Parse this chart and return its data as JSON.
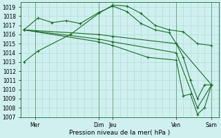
{
  "xlabel": "Pression niveau de la mer( hPa )",
  "ylim": [
    1007,
    1019.5
  ],
  "xlim": [
    0,
    14
  ],
  "yticks": [
    1007,
    1008,
    1009,
    1010,
    1011,
    1012,
    1013,
    1014,
    1015,
    1016,
    1017,
    1018,
    1019
  ],
  "xtick_positions": [
    1,
    5.5,
    6.5,
    11,
    13.5
  ],
  "xtick_labels": [
    "Mer",
    "Dim",
    "Jeu",
    "Ven",
    "Sam"
  ],
  "vlines": [
    1,
    5.5,
    6.5,
    11,
    13.5
  ],
  "background_color": "#cff0ee",
  "grid_color": "#b0ddd8",
  "line_color": "#1a6b2a",
  "lines": [
    {
      "x": [
        0.2,
        1.2,
        3.5,
        5.5,
        6.5,
        7.5,
        8.5,
        9.5,
        10.5,
        11.5,
        12.5,
        13.5
      ],
      "y": [
        1013.0,
        1014.2,
        1016.0,
        1018.3,
        1019.2,
        1019.1,
        1018.3,
        1017.0,
        1016.5,
        1016.3,
        1015.0,
        1014.8
      ]
    },
    {
      "x": [
        0.2,
        1.2,
        2.2,
        3.2,
        4.2,
        5.5,
        6.5,
        7.5,
        8.5,
        9.5,
        10.5,
        11.0,
        11.5,
        12.0,
        12.5,
        13.0,
        13.5
      ],
      "y": [
        1016.5,
        1017.8,
        1017.3,
        1017.5,
        1017.2,
        1018.4,
        1019.1,
        1018.5,
        1017.2,
        1016.5,
        1016.2,
        1015.0,
        1013.5,
        1011.0,
        1009.0,
        1010.5,
        1010.5
      ]
    },
    {
      "x": [
        0.2,
        5.5,
        6.5,
        11.0,
        13.5
      ],
      "y": [
        1016.5,
        1016.0,
        1015.8,
        1015.0,
        1010.5
      ]
    },
    {
      "x": [
        0.2,
        5.5,
        6.5,
        11.0,
        12.5,
        13.5
      ],
      "y": [
        1016.5,
        1015.5,
        1015.2,
        1014.0,
        1008.0,
        1010.5
      ]
    },
    {
      "x": [
        0.2,
        5.5,
        6.5,
        9.0,
        11.0,
        11.5,
        12.0,
        12.5,
        13.0,
        13.5
      ],
      "y": [
        1016.5,
        1015.2,
        1014.8,
        1013.5,
        1013.2,
        1009.3,
        1009.5,
        1007.3,
        1008.0,
        1010.5
      ]
    }
  ]
}
